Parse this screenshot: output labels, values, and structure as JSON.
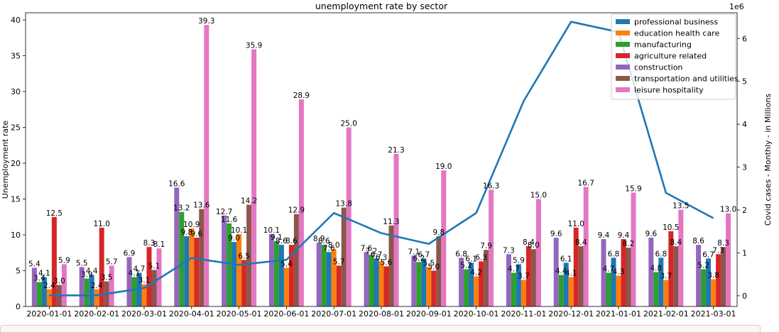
{
  "chart_data": {
    "type": "bar",
    "title": "unemployment rate by sector",
    "ylabel": "Unemployment rate",
    "y2label": "Covid cases - Monthly - in Millions",
    "y2_offset_text": "1e6",
    "ylim": [
      0,
      41
    ],
    "yticks": [
      0,
      5,
      10,
      15,
      20,
      25,
      30,
      35,
      40
    ],
    "y2lim": [
      -250000,
      6600000
    ],
    "y2ticks": [
      0,
      1,
      2,
      3,
      4,
      5,
      6
    ],
    "legend_position": "top-right",
    "categories": [
      "2020-01-01",
      "2020-02-01",
      "2020-03-01",
      "2020-04-01",
      "2020-05-01",
      "2020-06-01",
      "2020-07-01",
      "2020-08-01",
      "2020-09-01",
      "2020-10-01",
      "2020-11-01",
      "2020-12-01",
      "2021-01-01",
      "2021-02-01",
      "2021-03-01"
    ],
    "series": [
      {
        "name": "construction",
        "color": "#9467bd",
        "values": [
          5.4,
          5.5,
          6.9,
          16.6,
          12.7,
          10.1,
          8.9,
          7.6,
          7.1,
          6.8,
          7.3,
          9.6,
          9.4,
          9.6,
          8.6
        ]
      },
      {
        "name": "manufacturing",
        "color": "#2ca02c",
        "values": [
          3.4,
          3.9,
          4.1,
          13.2,
          11.6,
          9.1,
          8.6,
          7.2,
          6.2,
          5.2,
          4.7,
          4.4,
          4.7,
          4.8,
          5.2
        ]
      },
      {
        "name": "professional business",
        "color": "#1f77b4",
        "values": [
          4.1,
          4.4,
          4.7,
          9.8,
          9.0,
          8.6,
          7.6,
          6.7,
          6.7,
          6.1,
          5.9,
          6.1,
          6.8,
          6.8,
          6.7
        ]
      },
      {
        "name": "education health care",
        "color": "#ff7f0e",
        "values": [
          2.4,
          2.4,
          3.1,
          10.9,
          10.1,
          5.4,
          8.0,
          6.3,
          5.5,
          4.2,
          3.7,
          4.1,
          4.3,
          3.7,
          3.8
        ]
      },
      {
        "name": "agriculture related",
        "color": "#d62728",
        "values": [
          12.5,
          11.0,
          8.3,
          9.6,
          6.5,
          8.6,
          5.7,
          5.6,
          5.0,
          6.3,
          8.4,
          11.0,
          9.4,
          10.5,
          7.3
        ]
      },
      {
        "name": "transportation and utilities",
        "color": "#8c564b",
        "values": [
          3.0,
          3.5,
          5.1,
          13.6,
          14.2,
          12.9,
          13.8,
          11.3,
          9.8,
          7.9,
          8.0,
          8.4,
          8.2,
          8.4,
          8.3
        ]
      },
      {
        "name": "leisure hospitality",
        "color": "#e377c2",
        "values": [
          5.9,
          5.7,
          8.1,
          39.3,
          35.9,
          28.9,
          25.0,
          21.3,
          19.0,
          16.3,
          15.0,
          16.7,
          15.9,
          13.5,
          13.0
        ]
      }
    ],
    "legend_order": [
      "professional business",
      "education health care",
      "manufacturing",
      "agriculture related",
      "construction",
      "transportation and utilities",
      "leisure hospitality"
    ],
    "line_series": {
      "color": "#1f77b4",
      "values": [
        8000,
        10000,
        180000,
        880000,
        720000,
        840000,
        1930000,
        1460000,
        1210000,
        1930000,
        4540000,
        6390000,
        6150000,
        2400000,
        1810000
      ]
    }
  }
}
